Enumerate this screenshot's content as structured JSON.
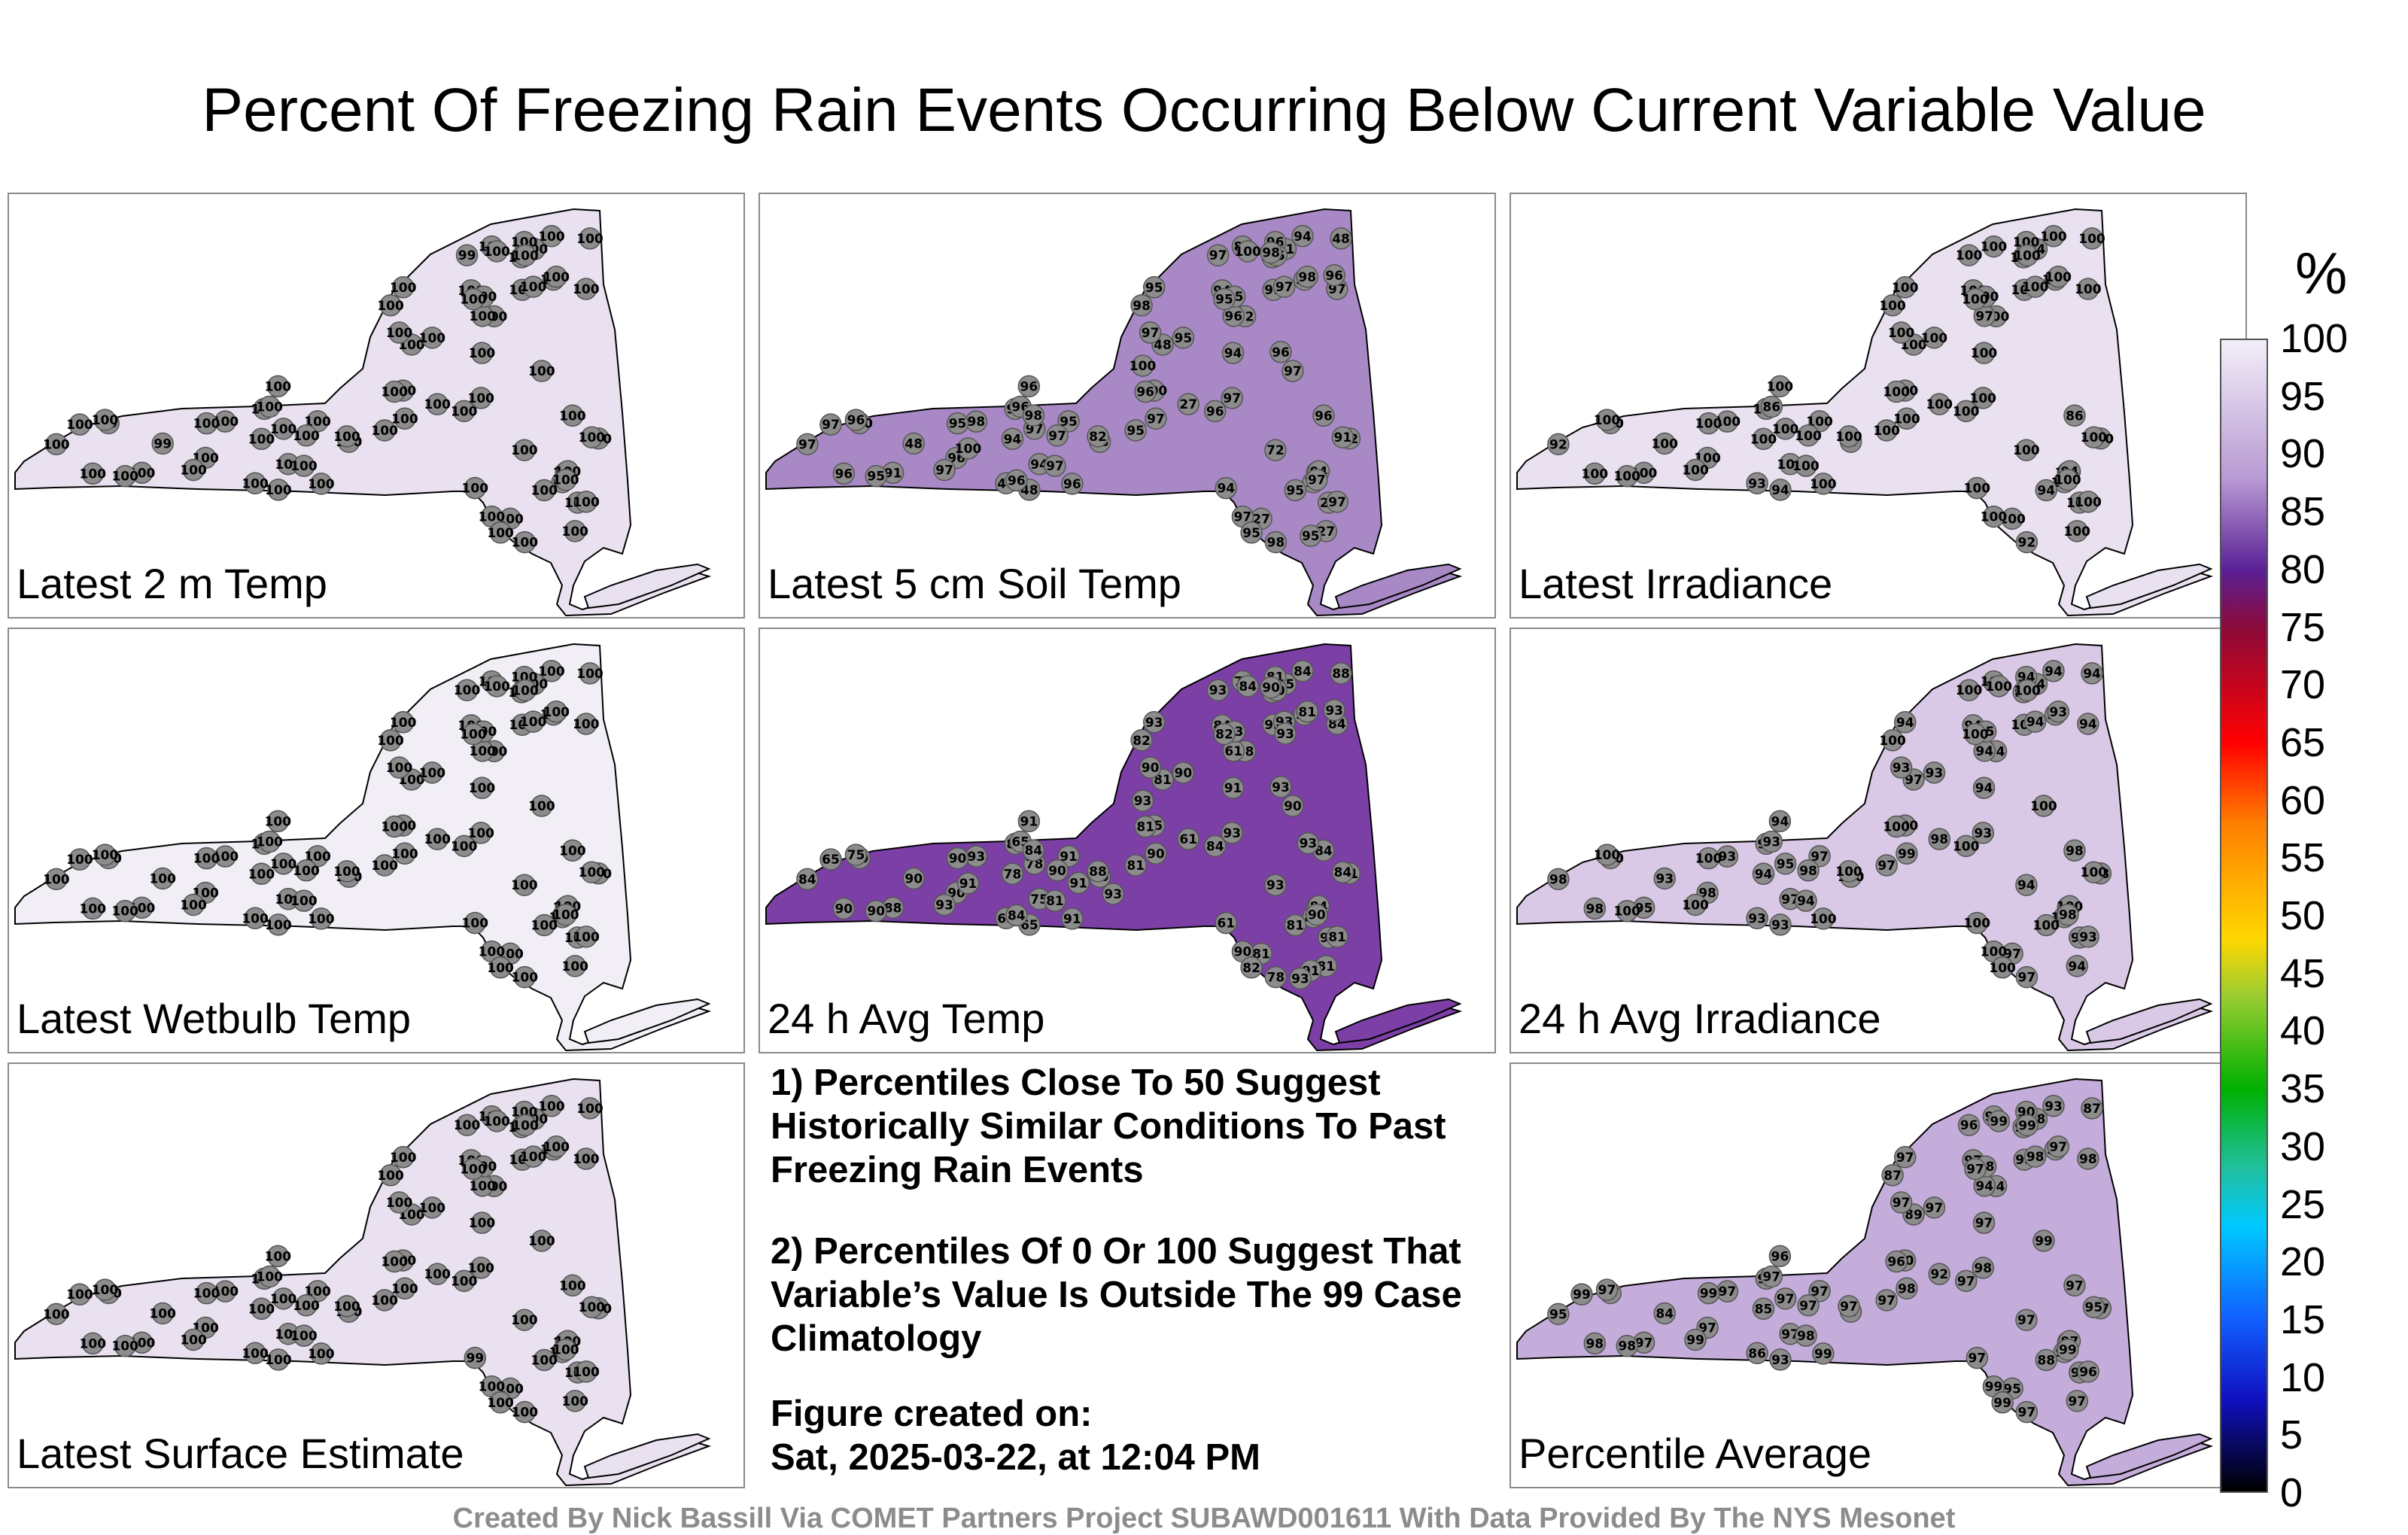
{
  "title": "Percent Of Freezing Rain Events Occurring Below Current Variable Value",
  "colors": {
    "map_background": "#ffffff",
    "station_marker": "#8c8c8c",
    "state_outline": "#000000",
    "credit_text": "#8c8c8c"
  },
  "panels": [
    {
      "label": "Latest 2 m Temp",
      "base_color": "#e9e1f0",
      "station_values": [
        100,
        100,
        100,
        100,
        100,
        100,
        100,
        100,
        100,
        99,
        99,
        100,
        100,
        100,
        100,
        100,
        100,
        100,
        100,
        100,
        99,
        100,
        100,
        100,
        100,
        100,
        100,
        100,
        99,
        100,
        100,
        100,
        100,
        100,
        100,
        100,
        100,
        100,
        100,
        100,
        100,
        100,
        100,
        100,
        100,
        100,
        100,
        100,
        100,
        100,
        100,
        100,
        100,
        100,
        100,
        100,
        100,
        100,
        100,
        100,
        100,
        100,
        100,
        100,
        100,
        100,
        100,
        100,
        100,
        100,
        100,
        100,
        100,
        100,
        100,
        100
      ]
    },
    {
      "label": "Latest 5 cm Soil Temp",
      "base_color": "#a889c6",
      "station_values": [
        96,
        95,
        94,
        94,
        96,
        91,
        100,
        72,
        94,
        72,
        100,
        94,
        48,
        48,
        95,
        94,
        48,
        96,
        91,
        27,
        48,
        48,
        27,
        96,
        94,
        94,
        96,
        95,
        97,
        27,
        48,
        82,
        97,
        98,
        72,
        97,
        97,
        96,
        97,
        97,
        98,
        95,
        95,
        96,
        98,
        97,
        95,
        97,
        91,
        97,
        96,
        96,
        98,
        98,
        27,
        95,
        96,
        95,
        97,
        82,
        95,
        97,
        97,
        82,
        91,
        96,
        96,
        95,
        95,
        97,
        97,
        96,
        97,
        100,
        95,
        97,
        98,
        100,
        98,
        95,
        100,
        96,
        96,
        96
      ]
    },
    {
      "label": "Latest Irradiance",
      "base_color": "#e9e1f0",
      "station_values": [
        100,
        100,
        100,
        100,
        100,
        100,
        100,
        100,
        100,
        100,
        100,
        100,
        100,
        100,
        94,
        100,
        94,
        97,
        84,
        100,
        100,
        93,
        100,
        100,
        94,
        100,
        86,
        100,
        100,
        100,
        97,
        100,
        100,
        100,
        100,
        100,
        100,
        86,
        100,
        100,
        100,
        100,
        100,
        100,
        92,
        92,
        100,
        100,
        100,
        100,
        100,
        100,
        100,
        100,
        100,
        100,
        100,
        100,
        100,
        100,
        100,
        100,
        100,
        100,
        100,
        100,
        100,
        100,
        100,
        100,
        100,
        100
      ]
    },
    {
      "label": "Latest Wetbulb Temp",
      "base_color": "#f1eef6",
      "station_values": [
        100,
        100,
        100,
        100,
        100,
        100,
        100,
        100,
        100,
        100,
        100,
        100,
        100,
        100,
        100,
        100,
        100,
        100,
        100,
        100,
        100,
        100,
        100,
        100,
        100,
        100,
        100,
        100,
        100,
        100,
        100,
        100,
        100,
        100,
        100,
        100,
        100,
        100,
        100,
        100,
        100,
        100,
        100,
        100,
        100,
        100,
        100,
        100,
        100,
        100,
        100,
        100,
        100,
        100,
        100,
        100,
        100,
        100,
        100,
        100,
        100,
        100,
        100,
        100,
        100,
        100,
        100,
        100,
        100,
        100,
        100,
        100,
        100,
        100,
        100,
        100
      ]
    },
    {
      "label": "24 h Avg Temp",
      "base_color": "#7b3fa6",
      "station_values": [
        90,
        84,
        91,
        84,
        90,
        88,
        75,
        78,
        84,
        84,
        90,
        61,
        81,
        88,
        81,
        78,
        65,
        61,
        65,
        81,
        90,
        65,
        61,
        81,
        84,
        75,
        65,
        93,
        93,
        91,
        90,
        88,
        93,
        93,
        93,
        78,
        81,
        84,
        84,
        81,
        93,
        91,
        90,
        93,
        78,
        84,
        81,
        90,
        93,
        90,
        90,
        84,
        82,
        81,
        81,
        90,
        91,
        93,
        93,
        91,
        90,
        90,
        90,
        78,
        84,
        75,
        81,
        82,
        90,
        90,
        93,
        91,
        90,
        84,
        82,
        65,
        84,
        93,
        90,
        91,
        91,
        84,
        93,
        93,
        93,
        91,
        93,
        93,
        93
      ]
    },
    {
      "label": "24 h Avg Irradiance",
      "base_color": "#d9c9e6",
      "station_values": [
        98,
        98,
        94,
        94,
        93,
        95,
        100,
        94,
        94,
        100,
        100,
        100,
        97,
        94,
        100,
        94,
        93,
        94,
        94,
        97,
        93,
        93,
        98,
        94,
        100,
        97,
        93,
        95,
        100,
        97,
        100,
        100,
        93,
        93,
        94,
        95,
        94,
        98,
        94,
        93,
        93,
        97,
        93,
        94,
        97,
        98,
        97,
        99,
        100,
        98,
        98,
        100,
        100,
        93,
        94,
        100,
        94,
        94,
        94,
        98,
        100,
        98,
        93,
        100,
        100,
        100,
        100,
        100,
        100,
        100,
        100,
        100,
        100,
        100,
        100
      ]
    },
    {
      "label": "Latest Surface Estimate",
      "base_color": "#e9e1f0",
      "station_values": [
        100,
        100,
        100,
        100,
        100,
        100,
        100,
        100,
        100,
        100,
        100,
        99,
        100,
        100,
        100,
        100,
        100,
        100,
        100,
        100,
        100,
        100,
        100,
        100,
        100,
        100,
        100,
        100,
        100,
        100,
        100,
        100,
        100,
        100,
        100,
        100,
        100,
        100,
        100,
        100,
        100,
        100,
        100,
        100,
        100,
        100,
        100,
        100,
        100,
        100,
        100,
        100,
        100,
        100,
        100,
        100,
        100,
        100,
        100,
        100,
        100,
        100,
        100,
        100,
        100,
        100,
        100,
        100,
        100,
        100,
        100,
        100,
        100,
        100,
        100,
        100
      ]
    },
    {
      "label": "Percentile Average",
      "base_color": "#c5addb",
      "station_values": [
        97,
        98,
        97,
        97,
        97,
        97,
        90,
        94,
        93,
        92,
        97,
        97,
        89,
        87,
        88,
        85,
        93,
        94,
        88,
        95,
        84,
        86,
        92,
        90,
        97,
        97,
        97,
        98,
        96,
        95,
        97,
        97,
        98,
        95,
        97,
        97,
        98,
        97,
        98,
        96,
        97,
        97,
        97,
        98,
        97,
        95,
        97,
        98,
        95,
        99,
        98,
        97,
        87,
        97,
        97,
        98,
        96,
        97,
        98,
        97,
        99,
        97,
        97,
        98,
        95,
        97,
        96,
        97,
        99,
        99,
        99,
        99,
        99,
        99,
        99,
        99
      ]
    }
  ],
  "notes": {
    "note1": "1) Percentiles Close To 50 Suggest Historically Similar Conditions To Past Freezing Rain Events",
    "note2": "2) Percentiles Of 0 Or 100 Suggest That Variable’s Value Is Outside The 99 Case Climatology",
    "created_label": "Figure created on:",
    "created_date": "Sat, 2025-03-22, at 12:04 PM"
  },
  "colorbar": {
    "unit": "%",
    "ticks": [
      "100",
      "95",
      "90",
      "85",
      "80",
      "75",
      "70",
      "65",
      "60",
      "55",
      "50",
      "45",
      "40",
      "35",
      "30",
      "25",
      "20",
      "15",
      "10",
      "5",
      "0"
    ]
  },
  "credits": "Created By Nick Bassill Via COMET Partners Project SUBAWD001611 With Data Provided By The NYS Mesonet"
}
